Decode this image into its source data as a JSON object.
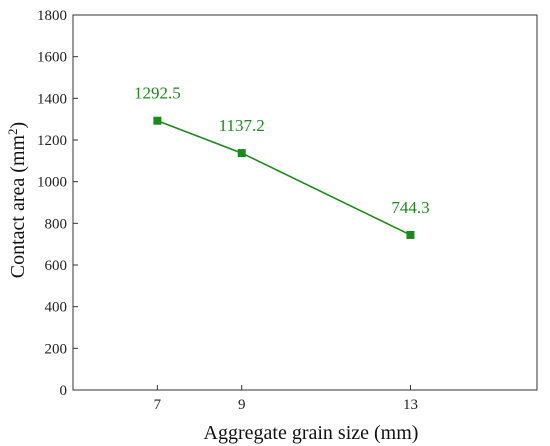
{
  "chart_data": {
    "type": "line",
    "x": [
      7,
      9,
      13
    ],
    "series": [
      {
        "values": [
          1292.5,
          1137.2,
          744.3
        ],
        "color": "#1a8a1a"
      }
    ],
    "data_labels": [
      "1292.5",
      "1137.2",
      "744.3"
    ],
    "xlabel": "Aggregate grain size (mm)",
    "ylabel": {
      "main": "Contact area (mm",
      "sup": "2",
      "tail": ")"
    },
    "x_ticks": [
      "7",
      "9",
      "13"
    ],
    "y_ticks": [
      "0",
      "200",
      "400",
      "600",
      "800",
      "1000",
      "1200",
      "1400",
      "1600",
      "1800"
    ],
    "xlim": [
      5,
      16
    ],
    "ylim": [
      0,
      1800
    ],
    "grid": false,
    "marker": "square"
  }
}
